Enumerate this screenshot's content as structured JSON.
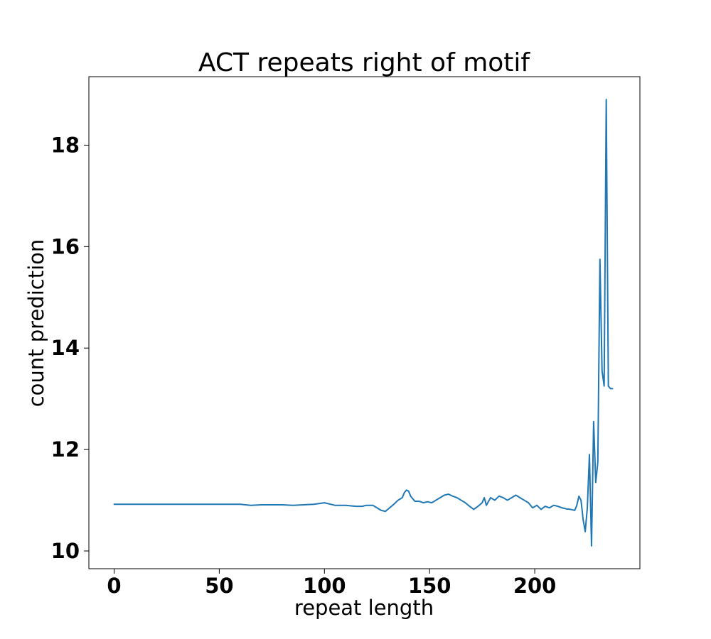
{
  "chart_data": {
    "type": "line",
    "title": "ACT repeats right of motif",
    "xlabel": "repeat length",
    "ylabel": "count prediction",
    "xlim": [
      -12,
      250
    ],
    "ylim": [
      9.65,
      19.35
    ],
    "xticks": [
      0,
      50,
      100,
      150,
      200
    ],
    "yticks": [
      10,
      12,
      14,
      16,
      18
    ],
    "xtick_labels": [
      "0",
      "50",
      "100",
      "150",
      "200"
    ],
    "ytick_labels": [
      "10",
      "12",
      "14",
      "16",
      "18"
    ],
    "grid": false,
    "line_color": "#1f77b4",
    "series": [
      {
        "x": [
          0,
          10,
          20,
          30,
          40,
          50,
          60,
          65,
          70,
          80,
          85,
          90,
          95,
          100,
          105,
          110,
          115,
          118,
          120,
          123,
          125,
          127,
          129,
          131,
          133,
          135,
          137,
          138,
          139,
          140,
          141,
          143,
          145,
          147,
          149,
          151,
          153,
          155,
          157,
          159,
          161,
          163,
          165,
          167,
          169,
          171,
          173,
          175,
          176,
          177,
          179,
          181,
          183,
          185,
          187,
          189,
          191,
          193,
          195,
          197,
          199,
          201,
          203,
          205,
          207,
          209,
          211,
          213,
          215,
          217,
          219,
          220,
          221,
          222,
          223,
          224,
          225,
          226,
          227,
          228,
          229,
          230,
          231,
          232,
          233,
          234,
          235,
          236,
          237
        ],
        "y": [
          10.92,
          10.92,
          10.92,
          10.92,
          10.92,
          10.92,
          10.92,
          10.9,
          10.91,
          10.91,
          10.9,
          10.91,
          10.92,
          10.95,
          10.9,
          10.9,
          10.88,
          10.88,
          10.9,
          10.9,
          10.85,
          10.8,
          10.78,
          10.85,
          10.92,
          11.0,
          11.05,
          11.15,
          11.2,
          11.18,
          11.08,
          10.98,
          10.98,
          10.95,
          10.97,
          10.95,
          11.0,
          11.05,
          11.1,
          11.12,
          11.08,
          11.05,
          11.0,
          10.95,
          10.88,
          10.82,
          10.88,
          10.95,
          11.05,
          10.9,
          11.05,
          11.0,
          11.08,
          11.05,
          11.0,
          11.05,
          11.1,
          11.05,
          11.0,
          10.95,
          10.85,
          10.9,
          10.82,
          10.88,
          10.85,
          10.9,
          10.88,
          10.85,
          10.83,
          10.82,
          10.8,
          10.9,
          11.08,
          11.0,
          10.62,
          10.38,
          10.85,
          11.9,
          10.1,
          12.55,
          11.35,
          11.75,
          15.75,
          13.55,
          13.25,
          18.9,
          13.25,
          13.2,
          13.2
        ]
      }
    ]
  }
}
